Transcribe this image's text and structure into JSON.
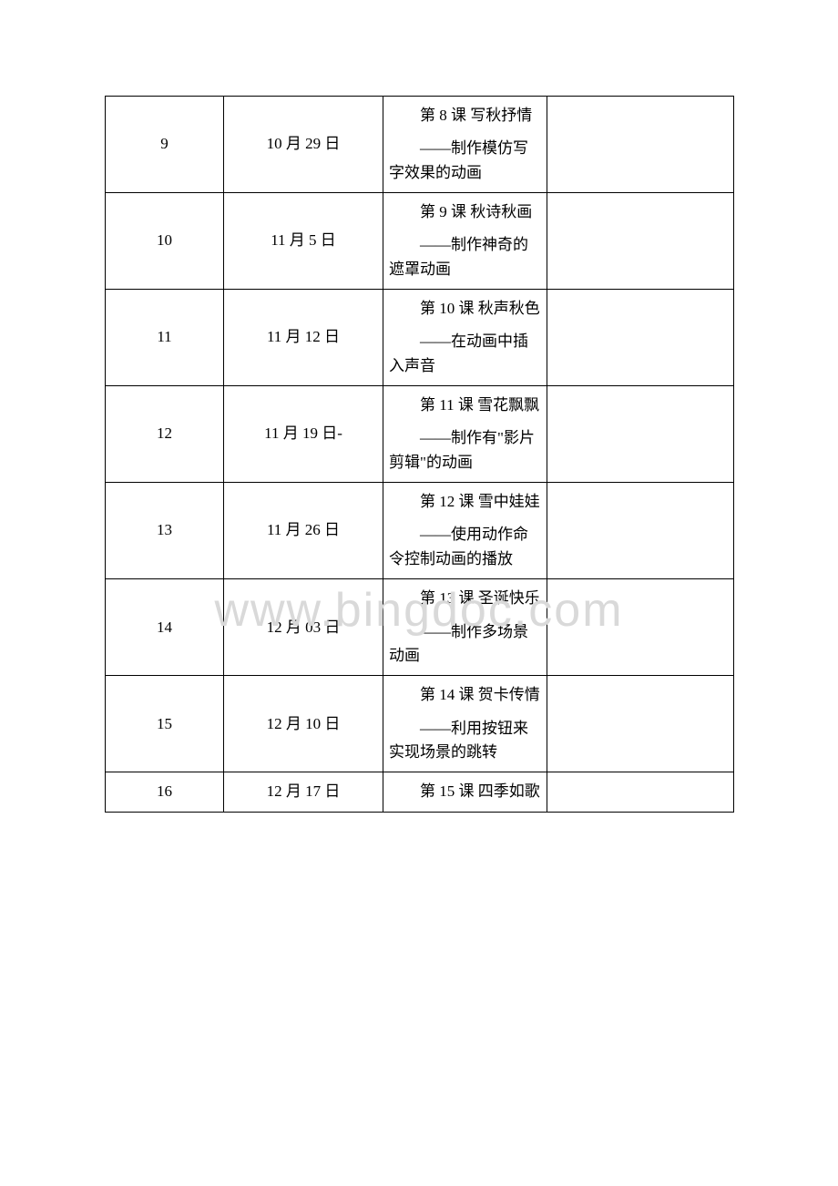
{
  "watermark": "www.bingdoc.com",
  "table": {
    "columns": {
      "col1_width": 130,
      "col2_width": 175,
      "col3_width": 180,
      "col4_width": 205
    },
    "border_color": "#000000",
    "text_color": "#000000",
    "font_size": 17,
    "rows": [
      {
        "num": "9",
        "date": "10 月 29 日",
        "title": "第 8 课 写秋抒情",
        "desc": "——制作模仿写字效果的动画",
        "note": ""
      },
      {
        "num": "10",
        "date": "11 月 5 日",
        "title": "第 9 课 秋诗秋画",
        "desc": "——制作神奇的遮罩动画",
        "note": ""
      },
      {
        "num": "11",
        "date": "11 月 12 日",
        "title": "第 10 课 秋声秋色",
        "desc": "——在动画中插入声音",
        "note": ""
      },
      {
        "num": "12",
        "date": "11 月 19 日-",
        "title": "第 11 课 雪花飘飘",
        "desc": "——制作有\"影片剪辑\"的动画",
        "note": ""
      },
      {
        "num": "13",
        "date": "11 月 26 日",
        "title": "第 12 课 雪中娃娃",
        "desc": "——使用动作命令控制动画的播放",
        "note": ""
      },
      {
        "num": "14",
        "date": "12 月 03 日",
        "title": "第 13 课 圣诞快乐",
        "desc": "——制作多场景动画",
        "note": ""
      },
      {
        "num": "15",
        "date": "12 月 10 日",
        "title": "第 14 课 贺卡传情",
        "desc": "——利用按钮来实现场景的跳转",
        "note": ""
      },
      {
        "num": "16",
        "date": "12 月 17 日",
        "title": "第 15 课 四季如歌",
        "desc": "",
        "note": ""
      }
    ]
  }
}
